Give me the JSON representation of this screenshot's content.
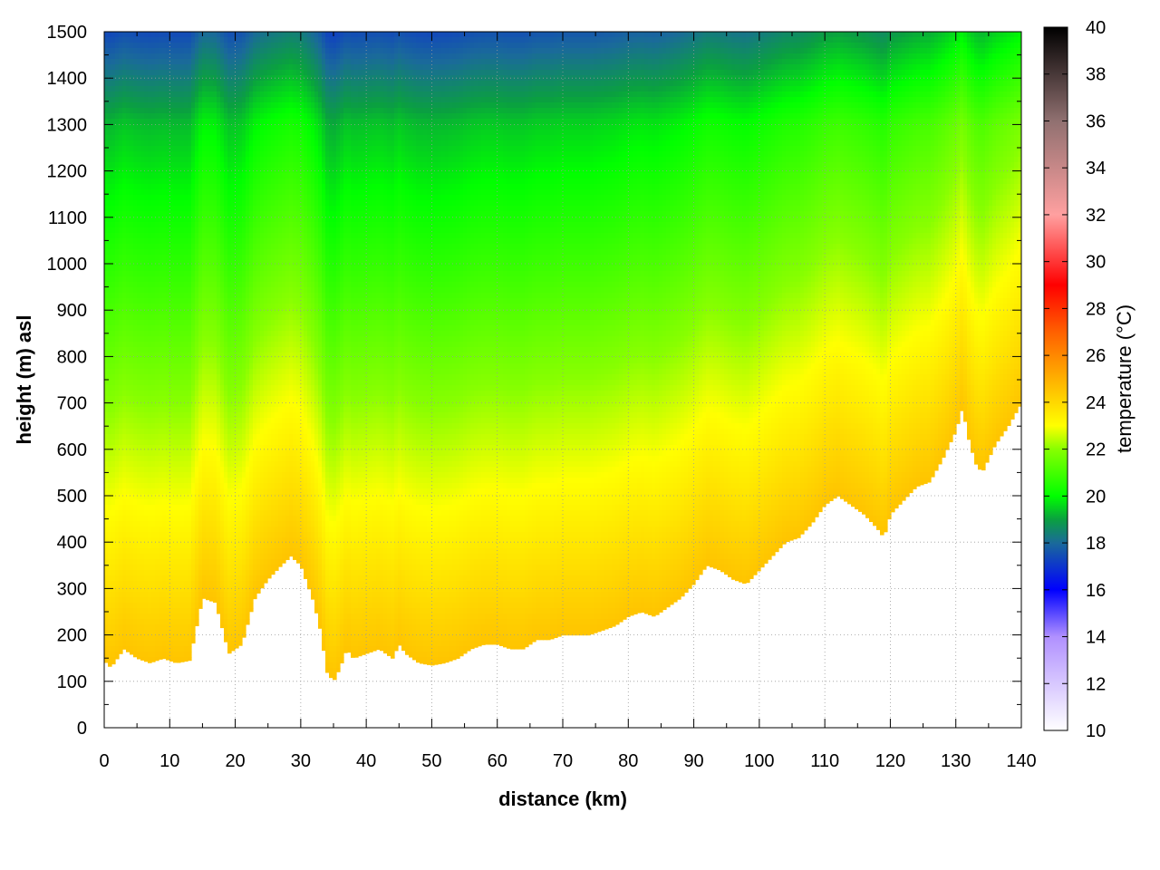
{
  "chart_data": {
    "type": "heatmap",
    "title": "",
    "xlabel": "distance (km)",
    "ylabel": "height (m) asl",
    "colorbar_label": "temperature (°C)",
    "xlim": [
      0,
      140
    ],
    "ylim": [
      0,
      1500
    ],
    "clim": [
      10,
      40
    ],
    "grid": true,
    "x_ticks": [
      "0",
      "10",
      "20",
      "30",
      "40",
      "50",
      "60",
      "70",
      "80",
      "90",
      "100",
      "110",
      "120",
      "130",
      "140"
    ],
    "y_ticks": [
      "0",
      "100",
      "200",
      "300",
      "400",
      "500",
      "600",
      "700",
      "800",
      "900",
      "1000",
      "1100",
      "1200",
      "1300",
      "1400",
      "1500"
    ],
    "colorbar_ticks": [
      "10",
      "12",
      "14",
      "16",
      "18",
      "20",
      "22",
      "24",
      "26",
      "28",
      "30",
      "32",
      "34",
      "36",
      "38",
      "40"
    ],
    "colormap": [
      {
        "value": 10,
        "color": "#ffffff"
      },
      {
        "value": 14,
        "color": "#b090ff"
      },
      {
        "value": 16,
        "color": "#0000ff"
      },
      {
        "value": 18,
        "color": "#1a6a9a"
      },
      {
        "value": 19,
        "color": "#0aa040"
      },
      {
        "value": 20,
        "color": "#00ff00"
      },
      {
        "value": 22,
        "color": "#88ff00"
      },
      {
        "value": 23,
        "color": "#ffff00"
      },
      {
        "value": 25,
        "color": "#ffb000"
      },
      {
        "value": 27,
        "color": "#ff6000"
      },
      {
        "value": 29,
        "color": "#ff0000"
      },
      {
        "value": 32,
        "color": "#ffa0a0"
      },
      {
        "value": 36,
        "color": "#907070"
      },
      {
        "value": 40,
        "color": "#000000"
      }
    ],
    "terrain": {
      "x": [
        0,
        1,
        2,
        3,
        5,
        7,
        9,
        11,
        13,
        15,
        17,
        19,
        21,
        23,
        25,
        27,
        28.5,
        30,
        32,
        33,
        34,
        35,
        36,
        37,
        38,
        40,
        42,
        44,
        45,
        46,
        48,
        50,
        52,
        54,
        56,
        58,
        60,
        62,
        64,
        66,
        68,
        70,
        72,
        74,
        76,
        78,
        80,
        82,
        84,
        86,
        88,
        90,
        92,
        94,
        96,
        98,
        100,
        102,
        104,
        106,
        108,
        110,
        112,
        114,
        116,
        118,
        119,
        120,
        122,
        124,
        126,
        128,
        130,
        131,
        132,
        133,
        134,
        135,
        136,
        138,
        140
      ],
      "height": [
        145,
        130,
        150,
        170,
        150,
        140,
        150,
        140,
        145,
        280,
        270,
        160,
        180,
        280,
        320,
        350,
        370,
        350,
        270,
        210,
        120,
        100,
        130,
        170,
        150,
        160,
        170,
        150,
        180,
        160,
        140,
        135,
        140,
        150,
        170,
        180,
        180,
        170,
        170,
        190,
        190,
        200,
        200,
        200,
        210,
        220,
        240,
        250,
        240,
        260,
        280,
        310,
        350,
        340,
        320,
        310,
        340,
        370,
        400,
        410,
        440,
        480,
        500,
        480,
        460,
        430,
        410,
        460,
        490,
        520,
        530,
        580,
        640,
        690,
        620,
        570,
        550,
        580,
        610,
        650,
        700
      ]
    },
    "surface_temperature": 24.5,
    "lapse_rate_c_per_km": 4.5,
    "mid_level_max_temperature": 22
  }
}
